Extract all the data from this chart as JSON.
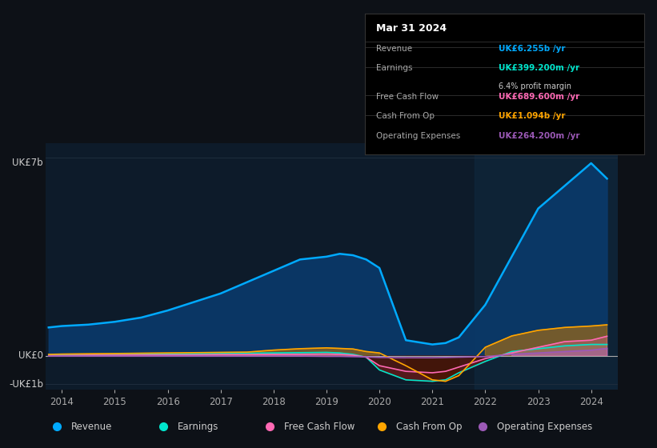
{
  "background_color": "#0d1117",
  "plot_bg_color": "#0d1b2a",
  "grid_color": "#1e2d3d",
  "y_label_top": "UK£7b",
  "y_label_zero": "UK£0",
  "y_label_neg": "-UK£1b",
  "x_ticks": [
    2014,
    2015,
    2016,
    2017,
    2018,
    2019,
    2020,
    2021,
    2022,
    2023,
    2024
  ],
  "ylim": [
    -1200000000.0,
    7500000000.0
  ],
  "years": [
    2013.75,
    2014,
    2014.5,
    2015,
    2015.5,
    2016,
    2016.5,
    2017,
    2017.5,
    2018,
    2018.5,
    2019,
    2019.25,
    2019.5,
    2019.75,
    2020,
    2020.5,
    2021,
    2021.25,
    2021.5,
    2022,
    2022.5,
    2023,
    2023.5,
    2024,
    2024.3
  ],
  "revenue": [
    1000000000.0,
    1050000000.0,
    1100000000.0,
    1200000000.0,
    1350000000.0,
    1600000000.0,
    1900000000.0,
    2200000000.0,
    2600000000.0,
    3000000000.0,
    3400000000.0,
    3500000000.0,
    3600000000.0,
    3550000000.0,
    3400000000.0,
    3100000000.0,
    550000000.0,
    400000000.0,
    450000000.0,
    650000000.0,
    1800000000.0,
    3500000000.0,
    5200000000.0,
    6000000000.0,
    6800000000.0,
    6255000000.0
  ],
  "earnings": [
    20000000.0,
    25000000.0,
    30000000.0,
    40000000.0,
    50000000.0,
    60000000.0,
    70000000.0,
    80000000.0,
    90000000.0,
    100000000.0,
    110000000.0,
    120000000.0,
    100000000.0,
    50000000.0,
    -50000000.0,
    -500000000.0,
    -850000000.0,
    -900000000.0,
    -850000000.0,
    -600000000.0,
    -200000000.0,
    150000000.0,
    250000000.0,
    350000000.0,
    400000000.0,
    399200000.0
  ],
  "free_cash_flow": [
    10000000.0,
    10000000.0,
    20000000.0,
    20000000.0,
    30000000.0,
    30000000.0,
    30000000.0,
    40000000.0,
    40000000.0,
    50000000.0,
    50000000.0,
    60000000.0,
    50000000.0,
    20000000.0,
    -50000000.0,
    -350000000.0,
    -550000000.0,
    -600000000.0,
    -550000000.0,
    -400000000.0,
    -100000000.0,
    100000000.0,
    300000000.0,
    500000000.0,
    550000000.0,
    689600000.0
  ],
  "cash_from_op": [
    50000000.0,
    60000000.0,
    70000000.0,
    80000000.0,
    90000000.0,
    100000000.0,
    110000000.0,
    120000000.0,
    130000000.0,
    200000000.0,
    250000000.0,
    280000000.0,
    260000000.0,
    240000000.0,
    150000000.0,
    100000000.0,
    -350000000.0,
    -850000000.0,
    -900000000.0,
    -700000000.0,
    300000000.0,
    700000000.0,
    900000000.0,
    1000000000.0,
    1050000000.0,
    1094000000.0
  ],
  "operating_expenses": [
    -10000000.0,
    -10000000.0,
    -10000000.0,
    -10000000.0,
    -10000000.0,
    -10000000.0,
    -10000000.0,
    -10000000.0,
    -10000000.0,
    -10000000.0,
    -10000000.0,
    -20000000.0,
    -20000000.0,
    -30000000.0,
    -40000000.0,
    -60000000.0,
    -70000000.0,
    -70000000.0,
    -60000000.0,
    -50000000.0,
    -30000000.0,
    50000000.0,
    100000000.0,
    150000000.0,
    200000000.0,
    264200000.0
  ],
  "revenue_color": "#00aaff",
  "earnings_color": "#00e5cc",
  "free_cash_flow_color": "#ff69b4",
  "cash_from_op_color": "#ffa500",
  "operating_expenses_color": "#9b59b6",
  "revenue_fill_color": "#0a3a6b",
  "tooltip_bg": "#000000",
  "tooltip_title": "Mar 31 2024",
  "tooltip_revenue_label": "Revenue",
  "tooltip_revenue_value": "UK£6.255b /yr",
  "tooltip_earnings_label": "Earnings",
  "tooltip_earnings_value": "UK£399.200m /yr",
  "tooltip_margin": "6.4% profit margin",
  "tooltip_fcf_label": "Free Cash Flow",
  "tooltip_fcf_value": "UK£689.600m /yr",
  "tooltip_cashop_label": "Cash From Op",
  "tooltip_cashop_value": "UK£1.094b /yr",
  "tooltip_opex_label": "Operating Expenses",
  "tooltip_opex_value": "UK£264.200m /yr",
  "legend_labels": [
    "Revenue",
    "Earnings",
    "Free Cash Flow",
    "Cash From Op",
    "Operating Expenses"
  ],
  "legend_colors": [
    "#00aaff",
    "#00e5cc",
    "#ff69b4",
    "#ffa500",
    "#9b59b6"
  ]
}
